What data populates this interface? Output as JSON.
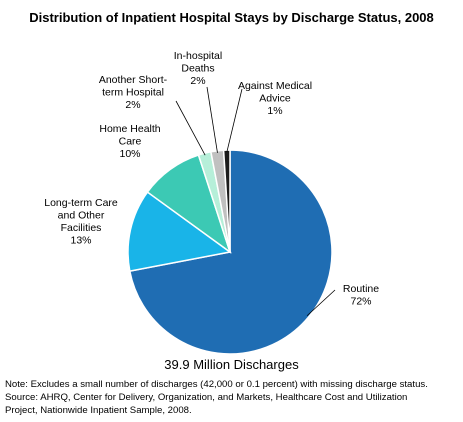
{
  "chart_data": {
    "type": "pie",
    "title": "Distribution of Inpatient Hospital Stays by Discharge Status, 2008",
    "subtitle": "39.9 Million Discharges",
    "slices": [
      {
        "label_lines": [
          "Routine",
          "72%"
        ],
        "value": 72,
        "color": "#1f6db3"
      },
      {
        "label_lines": [
          "Long-term Care",
          "and Other",
          "Facilities",
          "13%"
        ],
        "value": 13,
        "color": "#19b4e8"
      },
      {
        "label_lines": [
          "Home Health",
          "Care",
          "10%"
        ],
        "value": 10,
        "color": "#3cc9b4"
      },
      {
        "label_lines": [
          "Another Short-",
          "term Hospital",
          "2%"
        ],
        "value": 2,
        "color": "#b6efd9"
      },
      {
        "label_lines": [
          "In-hospital",
          "Deaths",
          "2%"
        ],
        "value": 2,
        "color": "#c0c0c0"
      },
      {
        "label_lines": [
          "Against Medical",
          "Advice",
          "1%"
        ],
        "value": 1,
        "color": "#1c1c1c"
      }
    ],
    "notes": [
      "Note: Excludes a small number of discharges (42,000 or 0.1 percent) with missing discharge status.",
      "Source:  AHRQ, Center for Delivery, Organization, and Markets, Healthcare Cost and Utilization",
      "Project, Nationwide Inpatient Sample, 2008."
    ]
  }
}
